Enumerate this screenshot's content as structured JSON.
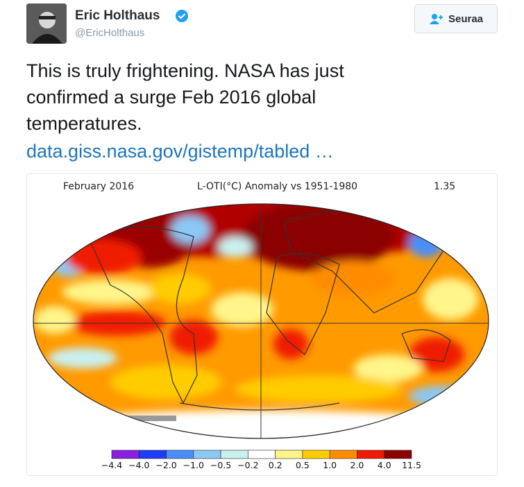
{
  "tweet": {
    "author": {
      "name": "Eric Holthaus",
      "handle": "@EricHolthaus"
    },
    "follow_button": "Seuraa",
    "text": "This is truly frightening. NASA has just confirmed a surge Feb 2016 global temperatures.",
    "link": "data.giss.nasa.gov/gistemp/tabled …",
    "media": {
      "left_title": "February 2016",
      "center_title": "L-OTI(°C) Anomaly vs 1951-1980",
      "right_title": "1.35",
      "colorbar": {
        "labels": [
          "−4.4",
          "−4.0",
          "−2.0",
          "−1.0",
          "−0.5",
          "−0.2",
          "0.2",
          "0.5",
          "1.0",
          "2.0",
          "4.0",
          "11.5"
        ],
        "colors": [
          "#8a1fe0",
          "#1c3cf5",
          "#4a8ff7",
          "#8cc8f5",
          "#c9f0f0",
          "#ffffff",
          "#fff58a",
          "#ffcc00",
          "#ff8c00",
          "#f01a00",
          "#8b0000"
        ]
      }
    }
  }
}
